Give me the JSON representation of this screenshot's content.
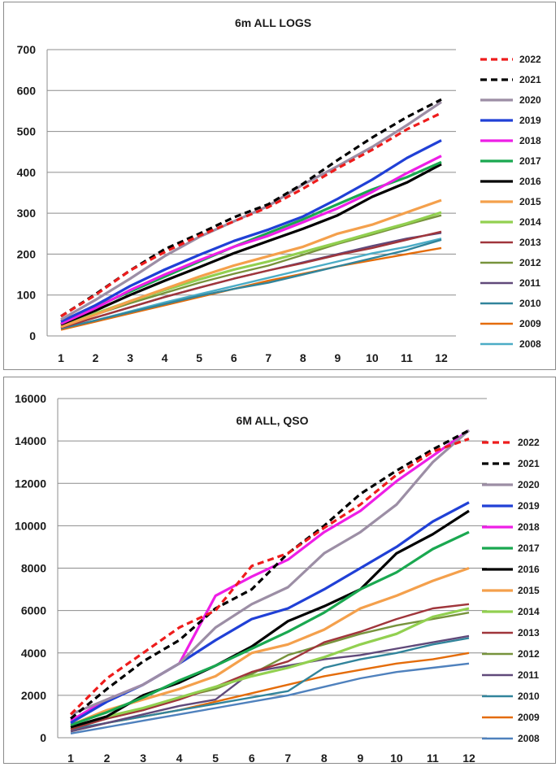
{
  "chart_data": [
    {
      "type": "line",
      "title": "6m ALL LOGS",
      "xlabel": "",
      "ylabel": "",
      "x": [
        1,
        2,
        3,
        4,
        5,
        6,
        7,
        8,
        9,
        10,
        11,
        12
      ],
      "x_ticks": [
        "1",
        "2",
        "3",
        "4",
        "5",
        "6",
        "7",
        "8",
        "9",
        "10",
        "11",
        "12"
      ],
      "ylim": [
        0,
        700
      ],
      "y_ticks": [
        "0",
        "100",
        "200",
        "300",
        "400",
        "500",
        "600",
        "700"
      ],
      "grid": "horizontal",
      "legend_position": "right",
      "series": [
        {
          "name": "2022",
          "color": "#ee1c1c",
          "style": "dashed",
          "values": [
            48,
            100,
            160,
            205,
            245,
            280,
            315,
            360,
            410,
            455,
            505,
            545
          ]
        },
        {
          "name": "2021",
          "color": "#000000",
          "style": "dashed",
          "values": [
            48,
            102,
            160,
            212,
            250,
            290,
            322,
            372,
            430,
            485,
            535,
            578
          ]
        },
        {
          "name": "2020",
          "color": "#9c8ea5",
          "style": "solid",
          "values": [
            40,
            88,
            140,
            195,
            242,
            280,
            318,
            370,
            415,
            462,
            515,
            572
          ]
        },
        {
          "name": "2019",
          "color": "#2040d6",
          "style": "solid",
          "values": [
            35,
            75,
            122,
            162,
            198,
            232,
            260,
            292,
            335,
            382,
            435,
            478
          ]
        },
        {
          "name": "2018",
          "color": "#ee1ee6",
          "style": "solid",
          "values": [
            30,
            68,
            112,
            150,
            185,
            218,
            245,
            278,
            312,
            352,
            398,
            440
          ]
        },
        {
          "name": "2017",
          "color": "#1aa850",
          "style": "solid",
          "values": [
            35,
            72,
            108,
            145,
            182,
            218,
            252,
            285,
            322,
            358,
            388,
            425
          ]
        },
        {
          "name": "2016",
          "color": "#000000",
          "style": "solid",
          "values": [
            28,
            62,
            100,
            135,
            168,
            202,
            232,
            262,
            295,
            340,
            375,
            420
          ]
        },
        {
          "name": "2015",
          "color": "#f4a04c",
          "style": "solid",
          "values": [
            22,
            52,
            85,
            115,
            145,
            172,
            195,
            218,
            250,
            272,
            302,
            332
          ]
        },
        {
          "name": "2014",
          "color": "#92d050",
          "style": "solid",
          "values": [
            25,
            55,
            85,
            112,
            138,
            162,
            182,
            205,
            228,
            252,
            275,
            302
          ]
        },
        {
          "name": "2013",
          "color": "#a0353b",
          "style": "solid",
          "values": [
            20,
            45,
            70,
            95,
            118,
            140,
            160,
            178,
            198,
            215,
            235,
            255
          ]
        },
        {
          "name": "2012",
          "color": "#77933c",
          "style": "solid",
          "values": [
            25,
            52,
            80,
            105,
            130,
            152,
            172,
            198,
            225,
            248,
            272,
            295
          ]
        },
        {
          "name": "2011",
          "color": "#60497a",
          "style": "solid",
          "values": [
            20,
            45,
            70,
            95,
            118,
            140,
            160,
            180,
            200,
            220,
            238,
            252
          ]
        },
        {
          "name": "2010",
          "color": "#31849b",
          "style": "solid",
          "values": [
            18,
            38,
            58,
            78,
            98,
            115,
            130,
            150,
            170,
            190,
            210,
            235
          ]
        },
        {
          "name": "2009",
          "color": "#e46c0a",
          "style": "solid",
          "values": [
            15,
            35,
            55,
            75,
            95,
            115,
            135,
            152,
            170,
            185,
            200,
            215
          ]
        },
        {
          "name": "2008",
          "color": "#4bacc6",
          "style": "solid",
          "values": [
            18,
            38,
            60,
            82,
            102,
            122,
            142,
            162,
            182,
            202,
            218,
            238
          ]
        }
      ]
    },
    {
      "type": "line",
      "title": "6M ALL, QSO",
      "xlabel": "",
      "ylabel": "",
      "x": [
        1,
        2,
        3,
        4,
        5,
        6,
        7,
        8,
        9,
        10,
        11,
        12
      ],
      "x_ticks": [
        "1",
        "2",
        "3",
        "4",
        "5",
        "6",
        "7",
        "8",
        "9",
        "10",
        "11",
        "12"
      ],
      "ylim": [
        0,
        16000
      ],
      "y_ticks": [
        "0",
        "2000",
        "4000",
        "6000",
        "8000",
        "10000",
        "12000",
        "14000",
        "16000"
      ],
      "grid": "horizontal",
      "legend_position": "right",
      "series": [
        {
          "name": "2022",
          "color": "#ee1c1c",
          "style": "dashed",
          "values": [
            1100,
            2800,
            4000,
            5200,
            6000,
            8100,
            8700,
            9900,
            11000,
            12400,
            13500,
            14100
          ]
        },
        {
          "name": "2021",
          "color": "#000000",
          "style": "dashed",
          "values": [
            900,
            2300,
            3600,
            4600,
            6100,
            7000,
            8700,
            10000,
            11500,
            12600,
            13600,
            14500
          ]
        },
        {
          "name": "2020",
          "color": "#9c8ea5",
          "style": "solid",
          "values": [
            1100,
            1800,
            2500,
            3500,
            5200,
            6300,
            7100,
            8700,
            9700,
            11000,
            13000,
            14500
          ]
        },
        {
          "name": "2019",
          "color": "#2040d6",
          "style": "solid",
          "values": [
            700,
            1700,
            2500,
            3500,
            4600,
            5600,
            6100,
            7000,
            8000,
            9000,
            10200,
            11100
          ]
        },
        {
          "name": "2018",
          "color": "#ee1ee6",
          "style": "solid",
          "values": [
            800,
            1800,
            2500,
            3500,
            6700,
            7600,
            8400,
            9700,
            10700,
            12100,
            13300,
            14500
          ]
        },
        {
          "name": "2017",
          "color": "#1aa850",
          "style": "solid",
          "values": [
            600,
            1200,
            1900,
            2700,
            3400,
            4200,
            5000,
            5900,
            7000,
            7800,
            8900,
            9700
          ]
        },
        {
          "name": "2016",
          "color": "#000000",
          "style": "solid",
          "values": [
            500,
            1000,
            2000,
            2600,
            3400,
            4300,
            5500,
            6200,
            7000,
            8700,
            9600,
            10700
          ]
        },
        {
          "name": "2015",
          "color": "#f4a04c",
          "style": "solid",
          "values": [
            600,
            1300,
            1800,
            2300,
            2900,
            4000,
            4400,
            5100,
            6100,
            6700,
            7400,
            8000
          ]
        },
        {
          "name": "2014",
          "color": "#92d050",
          "style": "solid",
          "values": [
            500,
            1000,
            1400,
            1900,
            2400,
            2900,
            3300,
            3800,
            4400,
            4900,
            5700,
            6100
          ]
        },
        {
          "name": "2013",
          "color": "#a0353b",
          "style": "solid",
          "values": [
            400,
            900,
            1300,
            1800,
            2400,
            3100,
            3600,
            4500,
            5000,
            5600,
            6100,
            6300
          ]
        },
        {
          "name": "2012",
          "color": "#77933c",
          "style": "solid",
          "values": [
            500,
            900,
            1300,
            1900,
            2300,
            3000,
            3900,
            4400,
            4900,
            5300,
            5600,
            5900
          ]
        },
        {
          "name": "2011",
          "color": "#60497a",
          "style": "solid",
          "values": [
            300,
            700,
            1100,
            1500,
            1800,
            3100,
            3400,
            3700,
            3900,
            4200,
            4500,
            4800
          ]
        },
        {
          "name": "2010",
          "color": "#31849b",
          "style": "solid",
          "values": [
            400,
            700,
            1000,
            1300,
            1600,
            1900,
            2200,
            3300,
            3700,
            4000,
            4400,
            4700
          ]
        },
        {
          "name": "2009",
          "color": "#e46c0a",
          "style": "solid",
          "values": [
            300,
            700,
            1000,
            1300,
            1700,
            2100,
            2500,
            2900,
            3200,
            3500,
            3700,
            4000
          ]
        },
        {
          "name": "2008",
          "color": "#4f81bd",
          "style": "solid",
          "values": [
            200,
            500,
            800,
            1100,
            1400,
            1700,
            2000,
            2400,
            2800,
            3100,
            3300,
            3500
          ]
        }
      ]
    }
  ],
  "_legend_series_color_note": "colors belong to the series entries above"
}
